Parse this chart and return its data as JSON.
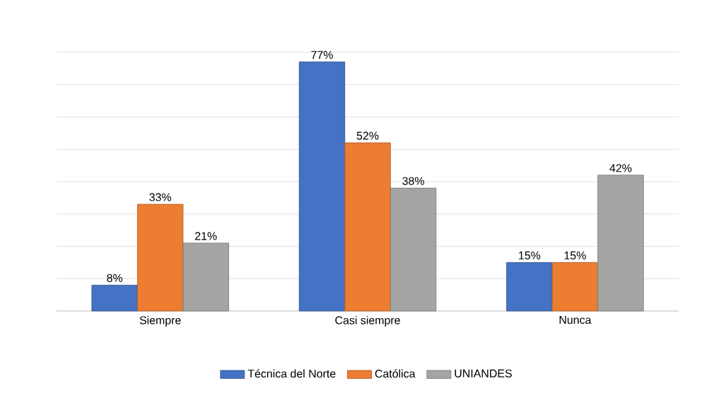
{
  "chart_data": {
    "type": "bar",
    "categories": [
      "Siempre",
      "Casi siempre",
      "Nunca"
    ],
    "series": [
      {
        "name": "Técnica del Norte",
        "color": "#4472c4",
        "values": [
          8,
          77,
          15
        ],
        "value_labels": [
          "8%",
          "77%",
          "15%"
        ]
      },
      {
        "name": "Católica",
        "color": "#ed7d31",
        "values": [
          33,
          52,
          15
        ],
        "value_labels": [
          "33%",
          "52%",
          "15%"
        ]
      },
      {
        "name": "UNIANDES",
        "color": "#a5a5a5",
        "values": [
          21,
          38,
          42
        ],
        "value_labels": [
          "21%",
          "38%",
          "42%"
        ]
      }
    ],
    "grid": "y",
    "legend": "bottom",
    "tick_labels": "x"
  }
}
